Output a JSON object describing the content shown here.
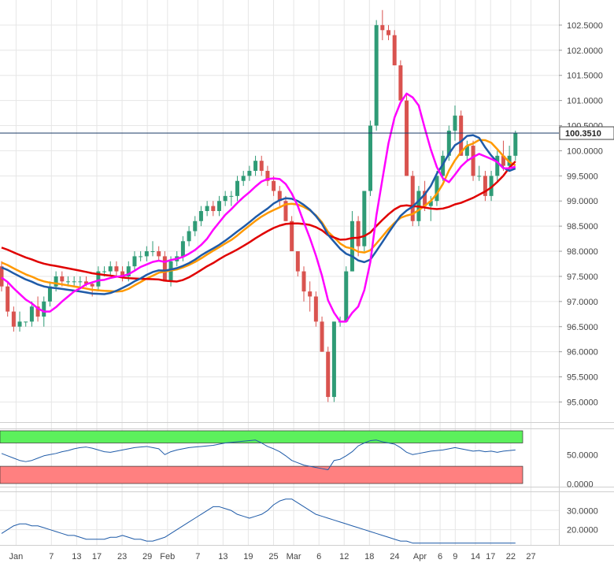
{
  "chart_data": [
    {
      "type": "candlestick",
      "price_axis": {
        "ticks": [
          "102.5000",
          "102.0000",
          "101.5000",
          "101.0000",
          "100.5000",
          "100.0000",
          "99.5000",
          "99.0000",
          "98.5000",
          "98.0000",
          "97.5000",
          "97.0000",
          "96.5000",
          "96.0000",
          "95.5000",
          "95.0000"
        ],
        "ylim": [
          94.6,
          103.0
        ]
      },
      "date_axis": {
        "ticks": [
          "Jan",
          "7",
          "13",
          "17",
          "23",
          "29",
          "Feb",
          "7",
          "13",
          "19",
          "25",
          "Mar",
          "6",
          "12",
          "18",
          "24",
          "Apr",
          "6",
          "9",
          "14",
          "17",
          "22",
          "27"
        ]
      },
      "last_price": {
        "label": "100.3510",
        "value": 100.351
      },
      "colors": {
        "up": "#2f9b76",
        "down": "#d9534f",
        "sma_fast": "#ff00ff",
        "sma_mid": "#1f5ba8",
        "sma_slow": "#e00000",
        "sma_long": "#ff9900",
        "price_line": "#1a3a66"
      },
      "candles": [
        [
          97.7,
          97.8,
          97.2,
          97.3
        ],
        [
          97.3,
          97.4,
          96.7,
          96.8
        ],
        [
          96.8,
          96.9,
          96.4,
          96.5
        ],
        [
          96.5,
          96.8,
          96.4,
          96.6
        ],
        [
          96.6,
          96.6,
          96.5,
          96.6
        ],
        [
          96.6,
          97.0,
          96.5,
          96.9
        ],
        [
          96.9,
          97.1,
          96.6,
          96.7
        ],
        [
          96.7,
          97.1,
          96.5,
          97.0
        ],
        [
          97.0,
          97.4,
          96.9,
          97.3
        ],
        [
          97.3,
          97.6,
          97.2,
          97.5
        ],
        [
          97.5,
          97.6,
          97.3,
          97.4
        ],
        [
          97.4,
          97.5,
          97.3,
          97.4
        ],
        [
          97.4,
          97.5,
          97.3,
          97.4
        ],
        [
          97.4,
          97.5,
          97.3,
          97.4
        ],
        [
          97.4,
          97.5,
          97.3,
          97.35
        ],
        [
          97.35,
          97.4,
          97.1,
          97.3
        ],
        [
          97.3,
          97.7,
          97.2,
          97.6
        ],
        [
          97.6,
          97.7,
          97.5,
          97.6
        ],
        [
          97.6,
          97.8,
          97.5,
          97.7
        ],
        [
          97.7,
          97.8,
          97.5,
          97.6
        ],
        [
          97.6,
          97.7,
          97.4,
          97.5
        ],
        [
          97.5,
          97.8,
          97.4,
          97.7
        ],
        [
          97.7,
          98.0,
          97.6,
          97.9
        ],
        [
          97.9,
          98.0,
          97.8,
          97.9
        ],
        [
          97.9,
          98.1,
          97.8,
          98.0
        ],
        [
          98.0,
          98.2,
          97.9,
          98.0
        ],
        [
          98.0,
          98.1,
          97.8,
          97.9
        ],
        [
          97.9,
          98.0,
          97.4,
          97.4
        ],
        [
          97.4,
          97.9,
          97.3,
          97.8
        ],
        [
          97.8,
          98.0,
          97.7,
          97.9
        ],
        [
          97.9,
          98.3,
          97.8,
          98.2
        ],
        [
          98.2,
          98.5,
          98.1,
          98.4
        ],
        [
          98.4,
          98.7,
          98.3,
          98.6
        ],
        [
          98.6,
          98.9,
          98.5,
          98.8
        ],
        [
          98.8,
          99.0,
          98.7,
          98.9
        ],
        [
          98.9,
          99.0,
          98.7,
          98.8
        ],
        [
          98.8,
          99.1,
          98.7,
          99.0
        ],
        [
          99.0,
          99.2,
          98.9,
          99.1
        ],
        [
          99.1,
          99.2,
          98.9,
          99.1
        ],
        [
          99.1,
          99.5,
          99.0,
          99.4
        ],
        [
          99.4,
          99.6,
          99.3,
          99.5
        ],
        [
          99.5,
          99.7,
          99.4,
          99.6
        ],
        [
          99.6,
          99.9,
          99.5,
          99.8
        ],
        [
          99.8,
          99.9,
          99.5,
          99.6
        ],
        [
          99.6,
          99.7,
          99.3,
          99.4
        ],
        [
          99.4,
          99.5,
          99.1,
          99.2
        ],
        [
          99.2,
          99.3,
          98.9,
          99.0
        ],
        [
          99.0,
          99.1,
          98.6,
          98.6
        ],
        [
          98.6,
          98.7,
          98.0,
          98.0
        ],
        [
          98.0,
          98.0,
          97.5,
          97.6
        ],
        [
          97.6,
          97.7,
          97.0,
          97.2
        ],
        [
          97.2,
          97.4,
          96.8,
          97.1
        ],
        [
          97.1,
          97.2,
          96.5,
          96.6
        ],
        [
          96.6,
          96.7,
          96.0,
          96.0
        ],
        [
          96.0,
          96.1,
          95.0,
          95.1
        ],
        [
          95.1,
          96.6,
          95.0,
          96.6
        ],
        [
          96.6,
          96.7,
          96.5,
          96.6
        ],
        [
          96.6,
          97.7,
          96.6,
          97.6
        ],
        [
          97.6,
          98.8,
          97.6,
          98.6
        ],
        [
          98.6,
          98.7,
          97.9,
          98.1
        ],
        [
          98.1,
          99.2,
          98.0,
          99.2
        ],
        [
          99.2,
          100.6,
          99.1,
          100.5
        ],
        [
          100.5,
          102.6,
          100.4,
          102.5
        ],
        [
          102.5,
          102.8,
          102.2,
          102.4
        ],
        [
          102.4,
          102.5,
          102.2,
          102.3
        ],
        [
          102.3,
          102.4,
          101.7,
          101.7
        ],
        [
          101.7,
          101.8,
          101.0,
          101.0
        ],
        [
          101.0,
          101.1,
          99.5,
          99.5
        ],
        [
          99.5,
          99.6,
          98.5,
          98.6
        ],
        [
          98.6,
          99.3,
          98.5,
          99.2
        ],
        [
          99.2,
          99.4,
          98.8,
          98.9
        ],
        [
          98.9,
          99.1,
          98.6,
          99.0
        ],
        [
          99.0,
          99.6,
          98.9,
          99.5
        ],
        [
          99.5,
          100.0,
          99.4,
          99.9
        ],
        [
          99.9,
          100.5,
          99.8,
          100.4
        ],
        [
          100.4,
          100.9,
          100.2,
          100.7
        ],
        [
          100.7,
          100.8,
          99.9,
          99.9
        ],
        [
          99.9,
          100.2,
          99.8,
          100.1
        ],
        [
          100.1,
          100.2,
          99.4,
          99.5
        ],
        [
          99.5,
          99.7,
          99.4,
          99.5
        ],
        [
          99.5,
          99.6,
          99.0,
          99.1
        ],
        [
          99.1,
          99.6,
          99.0,
          99.5
        ],
        [
          99.5,
          100.0,
          99.4,
          99.9
        ],
        [
          99.9,
          100.2,
          99.6,
          99.7
        ],
        [
          99.7,
          100.1,
          99.6,
          99.9
        ],
        [
          99.9,
          100.4,
          99.8,
          100.35
        ]
      ]
    },
    {
      "type": "line",
      "title": "",
      "bands": {
        "upper_color": "#5cf05c",
        "lower_color": "#ff8080"
      },
      "ticks": [
        "50.0000",
        "0.0000"
      ],
      "ylim": [
        -5,
        95
      ],
      "series": [
        {
          "values": [
            52,
            48,
            44,
            40,
            38,
            40,
            44,
            48,
            50,
            52,
            55,
            57,
            60,
            62,
            63,
            61,
            58,
            55,
            54,
            56,
            58,
            60,
            62,
            63,
            64,
            62,
            60,
            50,
            55,
            58,
            60,
            62,
            63,
            64,
            65,
            66,
            68,
            70,
            71,
            72,
            73,
            74,
            75,
            70,
            64,
            60,
            55,
            48,
            40,
            36,
            32,
            30,
            28,
            26,
            24,
            40,
            42,
            48,
            55,
            65,
            70,
            74,
            75,
            72,
            70,
            68,
            62,
            54,
            50,
            52,
            54,
            56,
            57,
            58,
            60,
            62,
            60,
            58,
            56,
            57,
            55,
            56,
            54,
            56,
            57,
            58
          ]
        }
      ]
    },
    {
      "type": "line",
      "title": "",
      "ticks": [
        "30.0000",
        "20.0000"
      ],
      "ylim": [
        12,
        40
      ],
      "series": [
        {
          "values": [
            18,
            20,
            22,
            23,
            23,
            22,
            22,
            21,
            20,
            19,
            18,
            17,
            17,
            16,
            15,
            15,
            15,
            15,
            16,
            16,
            17,
            16,
            15,
            15,
            14,
            14,
            15,
            16,
            18,
            20,
            22,
            24,
            26,
            28,
            30,
            32,
            32,
            31,
            30,
            28,
            27,
            26,
            27,
            28,
            30,
            33,
            35,
            36,
            36,
            34,
            32,
            30,
            28,
            27,
            26,
            25,
            24,
            23,
            22,
            21,
            20,
            19,
            18,
            17,
            16,
            15,
            14,
            14,
            13,
            13,
            13,
            13,
            13,
            13,
            13,
            13,
            13,
            13,
            13,
            13,
            13,
            13,
            13,
            13,
            13,
            13
          ]
        }
      ]
    }
  ]
}
